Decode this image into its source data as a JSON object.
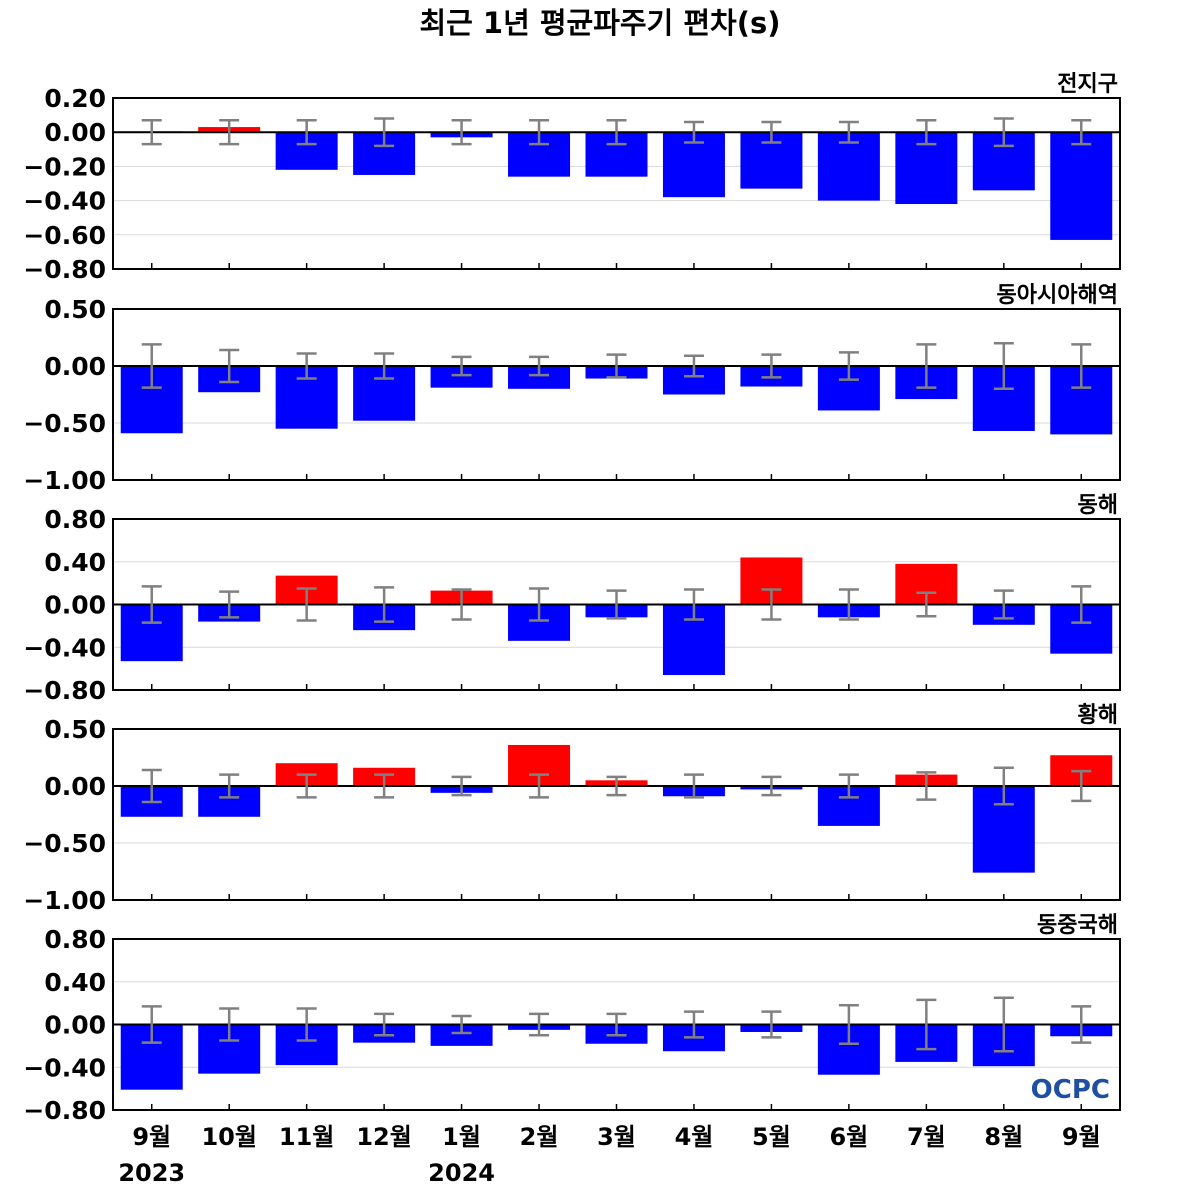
{
  "chart_data": {
    "type": "bar",
    "title": "최근 1년 평균파주기 편차(s)",
    "categories": [
      "9월",
      "10월",
      "11월",
      "12월",
      "1월",
      "2월",
      "3월",
      "4월",
      "5월",
      "6월",
      "7월",
      "8월",
      "9월"
    ],
    "year_labels": [
      {
        "index": 0,
        "text": "2023"
      },
      {
        "index": 4,
        "text": "2024"
      }
    ],
    "colors": {
      "positive": "#ff0000",
      "negative": "#0000ff",
      "errorbar": "#808080",
      "grid": "#d9d9d9",
      "zero_line": "#000000"
    },
    "legend": "none",
    "grid": true,
    "logo": "OCPC",
    "panels": [
      {
        "name": "전지구",
        "ylim": [
          -0.8,
          0.2
        ],
        "yticks": [
          0.2,
          0.0,
          -0.2,
          -0.4,
          -0.6,
          -0.8
        ],
        "ytick_labels": [
          "0.20",
          "0.00",
          "−0.20",
          "−0.40",
          "−0.60",
          "−0.80"
        ],
        "values": [
          0.005,
          0.03,
          -0.22,
          -0.25,
          -0.03,
          -0.26,
          -0.26,
          -0.38,
          -0.33,
          -0.4,
          -0.42,
          -0.34,
          -0.63
        ],
        "errors": [
          0.07,
          0.07,
          0.07,
          0.08,
          0.07,
          0.07,
          0.07,
          0.06,
          0.06,
          0.06,
          0.07,
          0.08,
          0.07
        ]
      },
      {
        "name": "동아시아해역",
        "ylim": [
          -1.0,
          0.5
        ],
        "yticks": [
          0.5,
          0.0,
          -0.5,
          -1.0
        ],
        "ytick_labels": [
          "0.50",
          "0.00",
          "−0.50",
          "−1.00"
        ],
        "values": [
          -0.59,
          -0.23,
          -0.55,
          -0.48,
          -0.19,
          -0.2,
          -0.11,
          -0.25,
          -0.18,
          -0.39,
          -0.29,
          -0.57,
          -0.6
        ],
        "errors": [
          0.19,
          0.14,
          0.11,
          0.11,
          0.08,
          0.08,
          0.1,
          0.09,
          0.1,
          0.12,
          0.19,
          0.2,
          0.19
        ]
      },
      {
        "name": "동해",
        "ylim": [
          -0.8,
          0.8
        ],
        "yticks": [
          0.8,
          0.4,
          0.0,
          -0.4,
          -0.8
        ],
        "ytick_labels": [
          "0.80",
          "0.40",
          "0.00",
          "−0.40",
          "−0.80"
        ],
        "values": [
          -0.53,
          -0.16,
          0.27,
          -0.24,
          0.13,
          -0.34,
          -0.12,
          -0.66,
          0.44,
          -0.12,
          0.38,
          -0.19,
          -0.46
        ],
        "errors": [
          0.17,
          0.12,
          0.15,
          0.16,
          0.14,
          0.15,
          0.13,
          0.14,
          0.14,
          0.14,
          0.11,
          0.13,
          0.17
        ]
      },
      {
        "name": "황해",
        "ylim": [
          -1.0,
          0.5
        ],
        "yticks": [
          0.5,
          0.0,
          -0.5,
          -1.0
        ],
        "ytick_labels": [
          "0.50",
          "0.00",
          "−0.50",
          "−1.00"
        ],
        "values": [
          -0.27,
          -0.27,
          0.2,
          0.16,
          -0.06,
          0.36,
          0.05,
          -0.09,
          -0.03,
          -0.35,
          0.1,
          -0.76,
          0.27
        ],
        "errors": [
          0.14,
          0.1,
          0.1,
          0.1,
          0.08,
          0.1,
          0.08,
          0.1,
          0.08,
          0.1,
          0.12,
          0.16,
          0.13
        ]
      },
      {
        "name": "동중국해",
        "ylim": [
          -0.8,
          0.8
        ],
        "yticks": [
          0.8,
          0.4,
          0.0,
          -0.4,
          -0.8
        ],
        "ytick_labels": [
          "0.80",
          "0.40",
          "0.00",
          "−0.40",
          "−0.80"
        ],
        "values": [
          -0.61,
          -0.46,
          -0.38,
          -0.17,
          -0.2,
          -0.05,
          -0.18,
          -0.25,
          -0.07,
          -0.47,
          -0.35,
          -0.39,
          -0.11
        ],
        "errors": [
          0.17,
          0.15,
          0.15,
          0.1,
          0.08,
          0.1,
          0.1,
          0.12,
          0.12,
          0.18,
          0.23,
          0.25,
          0.17
        ]
      }
    ]
  }
}
